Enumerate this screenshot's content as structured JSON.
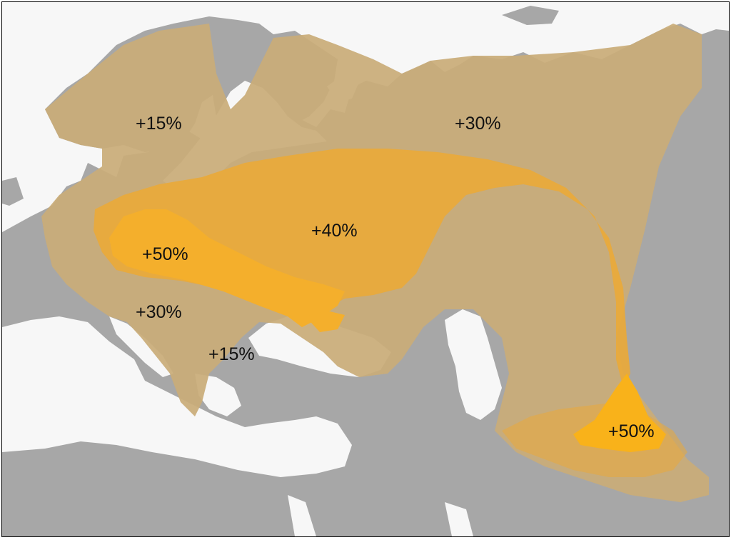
{
  "map": {
    "colors": {
      "land": "#a7a7a7",
      "sea": "#f7f7f7",
      "zone_low": "#c9ac78",
      "zone_mid": "#e9a93a",
      "zone_high": "#f4af2c",
      "zone_peak": "#f9b21a",
      "label_text": "#111111"
    },
    "labels": {
      "scandinavia": "+15%",
      "russia_north": "+30%",
      "central_russia": "+40%",
      "poland": "+50%",
      "balkans": "+30%",
      "greece": "+15%",
      "central_asia": "+50%"
    }
  }
}
